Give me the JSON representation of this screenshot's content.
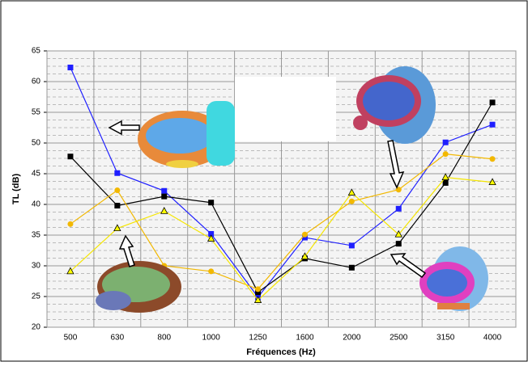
{
  "chart_data": {
    "type": "line",
    "y_label": "TL (dB)",
    "x_label": "Fréquences (Hz)",
    "categories": [
      "500",
      "630",
      "800",
      "1000",
      "1250",
      "1600",
      "2000",
      "2500",
      "3150",
      "4000"
    ],
    "ylim": [
      20,
      65
    ],
    "yticks": [
      20,
      25,
      30,
      35,
      40,
      45,
      50,
      55,
      60,
      65
    ],
    "grid": true,
    "series": [
      {
        "color": "#1f1fff",
        "marker": "square",
        "values": [
          62.3,
          45.1,
          42.2,
          35.2,
          24.9,
          34.6,
          33.3,
          39.3,
          50.1,
          53.0
        ]
      },
      {
        "color": "#000000",
        "marker": "square",
        "values": [
          47.8,
          39.8,
          41.3,
          40.3,
          25.7,
          31.2,
          29.7,
          33.6,
          43.5,
          56.6
        ]
      },
      {
        "color": "#f2b800",
        "marker": "circle",
        "values": [
          36.8,
          42.3,
          30.0,
          29.1,
          26.2,
          35.1,
          40.5,
          42.4,
          48.2,
          47.4
        ]
      },
      {
        "color": "#ffff00",
        "marker": "triangle",
        "values": [
          29.1,
          36.1,
          38.9,
          34.4,
          24.4,
          31.5,
          41.9,
          35.1,
          44.4,
          43.6
        ]
      }
    ]
  }
}
